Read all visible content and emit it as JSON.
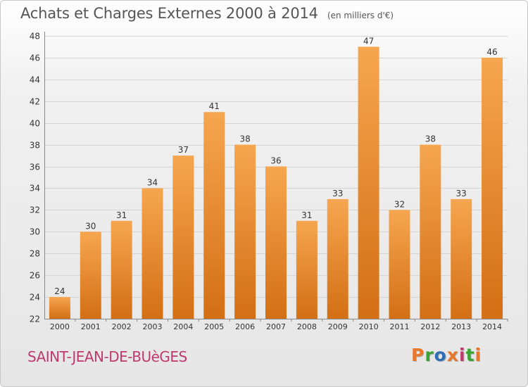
{
  "header": {
    "title": "Achats et Charges Externes 2000 à 2014",
    "unit": "(en milliers d'€)"
  },
  "footer": {
    "place": "SAINT-JEAN-DE-BUèGES",
    "logo": "Proxiti",
    "logo_colors": [
      "#e8762b",
      "#3aa335",
      "#2f6db5",
      "#e8762b",
      "#c0396e",
      "#3aa335",
      "#e8762b"
    ]
  },
  "colors": {
    "bar_top": "#f6a650",
    "bar_bottom": "#d36f14",
    "grid": "#d4d4d4",
    "axis_text": "#333333",
    "place": "#c0396e"
  },
  "chart_data": {
    "type": "bar",
    "title": "Achats et Charges Externes 2000 à 2014",
    "subtitle": "(en milliers d'€)",
    "xlabel": "",
    "ylabel": "",
    "categories": [
      "2000",
      "2001",
      "2002",
      "2003",
      "2004",
      "2005",
      "2006",
      "2007",
      "2008",
      "2009",
      "2010",
      "2011",
      "2012",
      "2013",
      "2014"
    ],
    "values": [
      24,
      30,
      31,
      34,
      37,
      41,
      38,
      36,
      31,
      33,
      47,
      32,
      38,
      33,
      46
    ],
    "ylim": [
      22,
      48
    ],
    "yticks": [
      22,
      24,
      26,
      28,
      30,
      32,
      34,
      36,
      38,
      40,
      42,
      44,
      46,
      48
    ],
    "grid": true,
    "data_labels": true
  }
}
